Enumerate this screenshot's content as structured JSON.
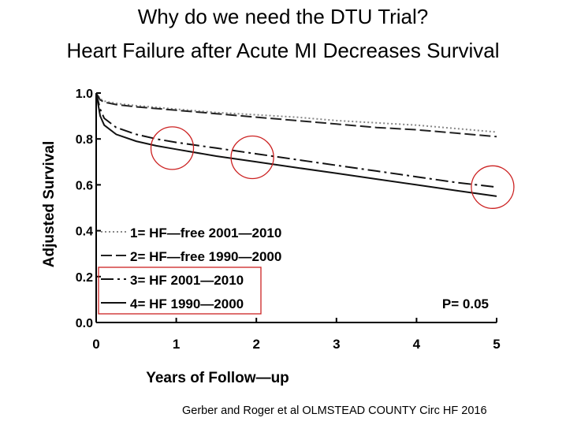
{
  "title_line1": "Why do we need the DTU Trial?",
  "title_line2": "Heart Failure after Acute MI Decreases Survival",
  "citation": "Gerber and Roger et al OLMSTEAD COUNTY Circ HF 2016",
  "chart_data": {
    "type": "line",
    "xlabel": "Years of Follow—up",
    "ylabel": "Adjusted Survival",
    "xlim": [
      0,
      5
    ],
    "ylim": [
      0.0,
      1.0
    ],
    "x_ticks": [
      "0",
      "1",
      "2",
      "3",
      "4",
      "5"
    ],
    "y_ticks": [
      "0.0",
      "0.2",
      "0.4",
      "0.6",
      "0.8",
      "1.0"
    ],
    "grid": false,
    "legend_position": "bottom-left",
    "annotation": "P= 0.05",
    "series": [
      {
        "name": "1= HF—free  2001—2010",
        "style": "dotted",
        "color": "#888888",
        "x": [
          0,
          0.05,
          0.1,
          0.25,
          0.5,
          1,
          1.5,
          2,
          2.5,
          3,
          3.5,
          4,
          4.5,
          5
        ],
        "y": [
          1.0,
          0.975,
          0.965,
          0.955,
          0.945,
          0.93,
          0.915,
          0.905,
          0.895,
          0.88,
          0.87,
          0.86,
          0.845,
          0.83
        ]
      },
      {
        "name": "2= HF—free  1990—2000",
        "style": "dashed",
        "color": "#222222",
        "x": [
          0,
          0.05,
          0.1,
          0.25,
          0.5,
          1,
          1.5,
          2,
          2.5,
          3,
          3.5,
          4,
          4.5,
          5
        ],
        "y": [
          1.0,
          0.97,
          0.96,
          0.95,
          0.94,
          0.925,
          0.91,
          0.895,
          0.88,
          0.865,
          0.85,
          0.84,
          0.825,
          0.81
        ]
      },
      {
        "name": "3= HF  2001—2010",
        "style": "dashdot",
        "color": "#111111",
        "x": [
          0,
          0.05,
          0.1,
          0.25,
          0.5,
          0.75,
          1,
          1.5,
          2,
          2.5,
          3,
          3.5,
          4,
          4.5,
          5
        ],
        "y": [
          1.0,
          0.93,
          0.89,
          0.85,
          0.82,
          0.8,
          0.785,
          0.76,
          0.735,
          0.71,
          0.685,
          0.66,
          0.635,
          0.61,
          0.59
        ]
      },
      {
        "name": "4= HF  1990—2000",
        "style": "solid",
        "color": "#111111",
        "x": [
          0,
          0.05,
          0.1,
          0.25,
          0.5,
          0.75,
          1,
          1.5,
          2,
          2.5,
          3,
          3.5,
          4,
          4.5,
          5
        ],
        "y": [
          1.0,
          0.9,
          0.86,
          0.82,
          0.79,
          0.77,
          0.755,
          0.725,
          0.7,
          0.675,
          0.65,
          0.625,
          0.6,
          0.575,
          0.55
        ]
      }
    ],
    "highlight_circles": [
      {
        "x": 0.95,
        "y": 0.76
      },
      {
        "x": 1.95,
        "y": 0.72
      },
      {
        "x": 4.95,
        "y": 0.59
      }
    ],
    "highlighted_legend_entries": [
      3,
      4
    ]
  }
}
